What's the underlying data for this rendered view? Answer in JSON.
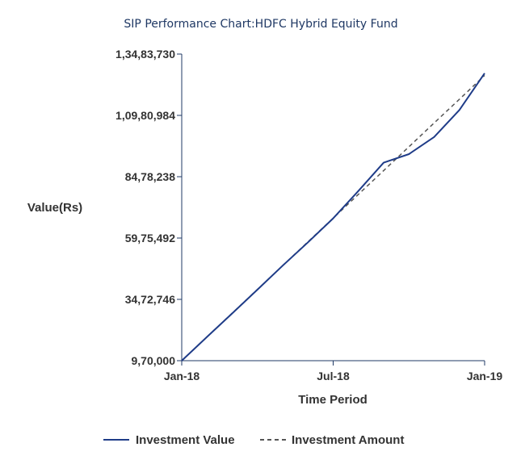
{
  "chart_data": {
    "type": "line",
    "title": "SIP Performance Chart:HDFC Hybrid Equity Fund",
    "xlabel": "Time Period",
    "ylabel": "Value(Rs)",
    "x": [
      0,
      1,
      2,
      3,
      4,
      5,
      6,
      7,
      8,
      9,
      10,
      11,
      12
    ],
    "x_tick_positions": [
      0,
      6,
      12
    ],
    "x_tick_labels": [
      "Jan-18",
      "Jul-18",
      "Jan-19"
    ],
    "ylim": [
      970000,
      13483730
    ],
    "y_ticks": [
      970000,
      3472746,
      5975492,
      8478238,
      10980984,
      13483730
    ],
    "y_tick_labels": [
      "9,70,000",
      "34,72,746",
      "59,75,492",
      "84,78,238",
      "1,09,80,984",
      "1,34,83,730"
    ],
    "series": [
      {
        "name": "Investment Value",
        "color": "#1f3c88",
        "style": "solid",
        "values": [
          970000,
          1940000,
          2900000,
          3870000,
          4850000,
          5800000,
          6780000,
          7900000,
          9050000,
          9400000,
          10100000,
          11200000,
          12700000
        ]
      },
      {
        "name": "Investment Amount",
        "color": "#555555",
        "style": "dashed",
        "values": [
          970000,
          1940000,
          2910000,
          3880000,
          4850000,
          5820000,
          6790000,
          7760000,
          8730000,
          9700000,
          10670000,
          11640000,
          12610000
        ]
      }
    ],
    "grid": false,
    "legend_position": "bottom"
  }
}
